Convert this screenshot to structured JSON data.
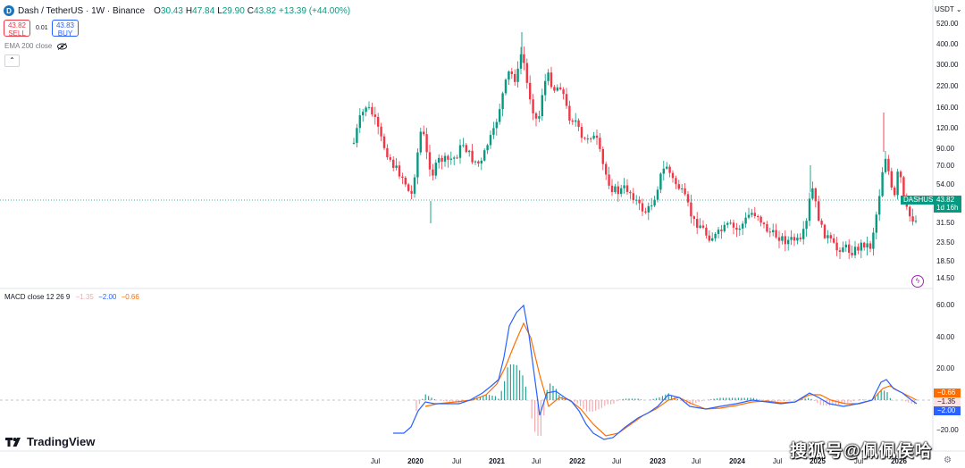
{
  "symbol": {
    "coin_glyph": "D",
    "name": "Dash / TetherUS · 1W · Binance",
    "ohlc": [
      {
        "k": "O",
        "v": "30.43"
      },
      {
        "k": "H",
        "v": "47.84"
      },
      {
        "k": "L",
        "v": "29.90"
      },
      {
        "k": "C",
        "v": "43.82"
      },
      {
        "k": "",
        "v": "+13.39 (+44.00%)"
      }
    ]
  },
  "trade": {
    "sell_price": "43.82",
    "sell_label": "SELL",
    "spread": "0.01",
    "buy_price": "43.83",
    "buy_label": "BUY"
  },
  "indicators": {
    "ema_label": "EMA 200 close",
    "collapse_glyph": "⌃",
    "macd_label": "MACD close 12 26 9",
    "macd_hist": "−1.35",
    "macd_line": "−2.00",
    "macd_signal": "−0.66"
  },
  "price_axis": {
    "currency_button": "USDT ⌄",
    "ticks": [
      "520.00",
      "400.00",
      "300.00",
      "220.00",
      "160.00",
      "120.00",
      "90.00",
      "70.00",
      "54.00",
      "31.50",
      "23.50",
      "18.50",
      "14.50"
    ]
  },
  "price_tag": {
    "symbol": "DASHUSDT",
    "price": "43.82",
    "countdown": "1d 16h"
  },
  "macd_axis": {
    "ticks": [
      "60.00",
      "40.00",
      "20.00",
      "−20.00"
    ],
    "tags": [
      "−0.66",
      "−1.35",
      "−2.00"
    ]
  },
  "time_axis": {
    "labels": [
      {
        "t": "Jul",
        "year": false
      },
      {
        "t": "2020",
        "year": true
      },
      {
        "t": "Jul",
        "year": false
      },
      {
        "t": "2021",
        "year": true
      },
      {
        "t": "Jul",
        "year": false
      },
      {
        "t": "2022",
        "year": true
      },
      {
        "t": "Jul",
        "year": false
      },
      {
        "t": "2023",
        "year": true
      },
      {
        "t": "Jul",
        "year": false
      },
      {
        "t": "2024",
        "year": true
      },
      {
        "t": "Jul",
        "year": false
      },
      {
        "t": "2025",
        "year": true
      },
      {
        "t": "Jul",
        "year": false
      },
      {
        "t": "2026",
        "year": true
      }
    ]
  },
  "branding": {
    "logo_text": "TradingView",
    "watermark": "搜狐号@佩佩侯哈"
  },
  "colors": {
    "up": "#089981",
    "down": "#f23645",
    "macd_line": "#2962ff",
    "signal": "#ff6d00"
  },
  "icons": {
    "eye": "eye-icon",
    "lightning": "lightning-icon",
    "gear": "settings-icon"
  }
}
